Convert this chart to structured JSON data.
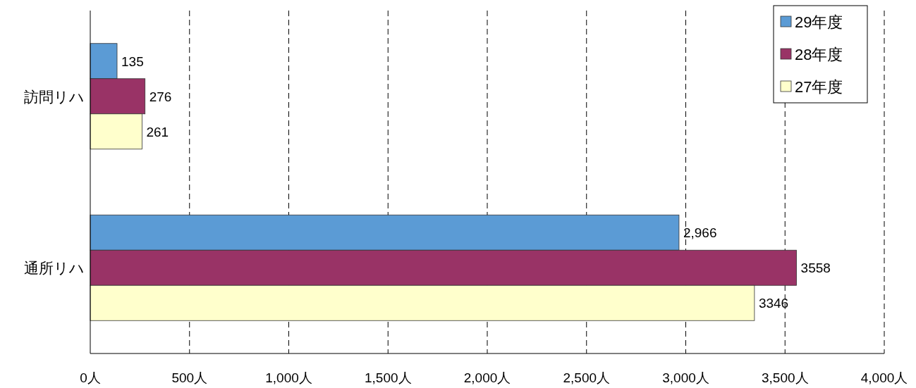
{
  "chart_data": {
    "type": "bar",
    "orientation": "horizontal",
    "categories": [
      "訪問リハ",
      "通所リハ"
    ],
    "series": [
      {
        "name": "29年度",
        "color": "#5b9bd5",
        "values": [
          135,
          2966
        ],
        "value_labels": [
          "135",
          "2,966"
        ]
      },
      {
        "name": "28年度",
        "color": "#993366",
        "values": [
          276,
          3558
        ],
        "value_labels": [
          "276",
          "3558"
        ]
      },
      {
        "name": "27年度",
        "color": "#ffffcc",
        "values": [
          261,
          3346
        ],
        "value_labels": [
          "261",
          "3346"
        ]
      }
    ],
    "xlim": [
      0,
      4000
    ],
    "xticks": [
      {
        "value": 0,
        "label": "0人"
      },
      {
        "value": 500,
        "label": "500人"
      },
      {
        "value": 1000,
        "label": "1,000人"
      },
      {
        "value": 1500,
        "label": "1,500人"
      },
      {
        "value": 2000,
        "label": "2,000人"
      },
      {
        "value": 2500,
        "label": "2,500人"
      },
      {
        "value": 3000,
        "label": "3,000人"
      },
      {
        "value": 3500,
        "label": "3,500人"
      },
      {
        "value": 4000,
        "label": "4,000人"
      }
    ],
    "grid": "x",
    "legend": "top right"
  }
}
